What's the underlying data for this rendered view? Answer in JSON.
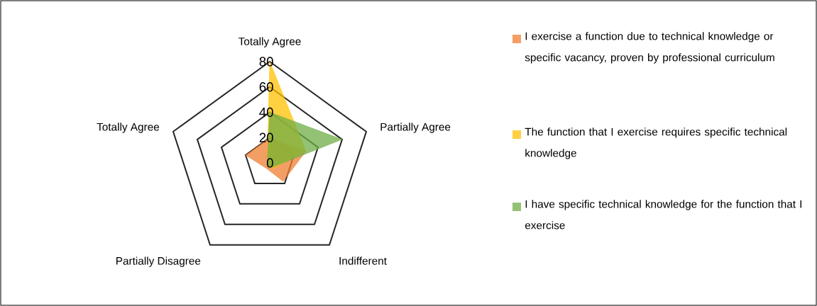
{
  "chart_data": {
    "type": "radar",
    "categories": [
      "Totally Agree",
      "Partially Agree",
      "Indifferent",
      "Partially Disagree",
      "Totally Agree"
    ],
    "ylim": [
      0,
      80
    ],
    "yticks": [
      0,
      20,
      40,
      60,
      80
    ],
    "legend": "right",
    "series": [
      {
        "name": "I exercise a function due to technical knowledge or specific vacancy, proven by professional curriculum",
        "color": "#ed7d31",
        "values": [
          20,
          30,
          18,
          5,
          20
        ]
      },
      {
        "name": "The function that I exercise requires specific technical knowledge",
        "color": "#ffc000",
        "values": [
          80,
          30,
          5,
          3,
          2
        ]
      },
      {
        "name": "I have specific technical knowledge for the function that I exercise",
        "color": "#70ad47",
        "values": [
          40,
          60,
          4,
          3,
          2
        ]
      }
    ]
  }
}
